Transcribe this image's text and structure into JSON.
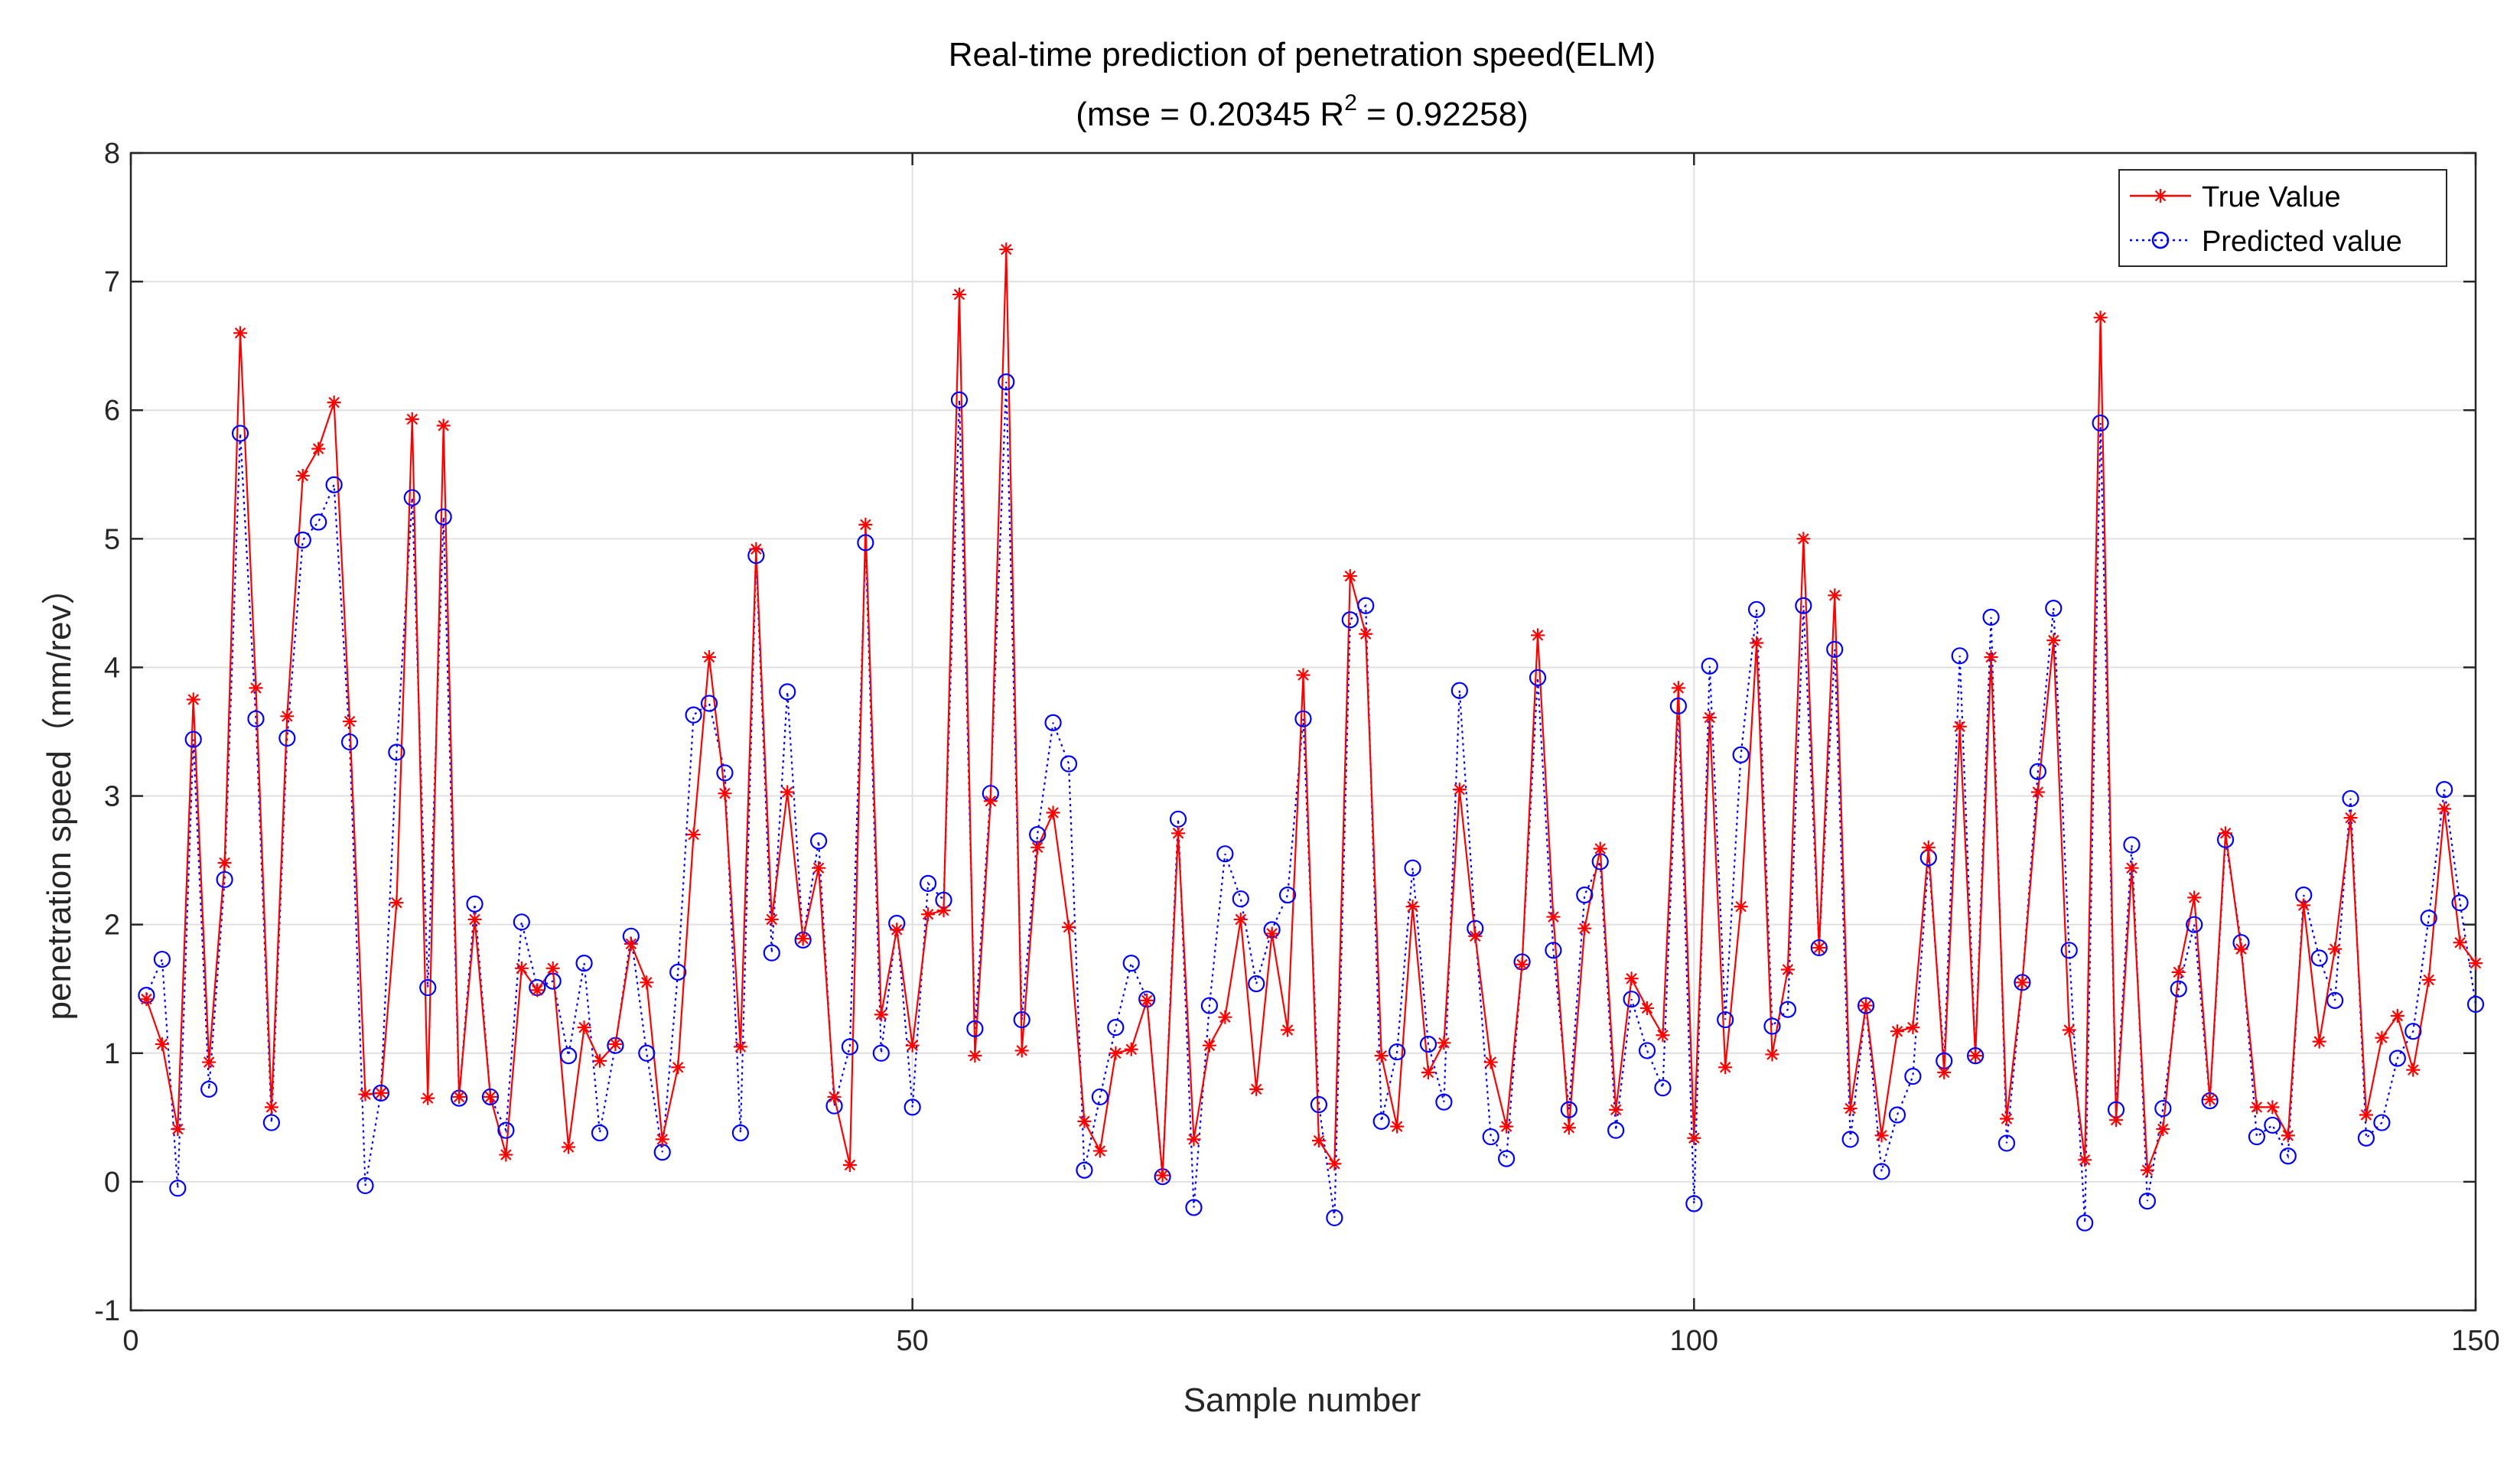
{
  "chart_data": {
    "type": "line",
    "title": "Real-time prediction of penetration speed(ELM)",
    "subtitle": {
      "prefix": "(mse = 0.20345 R",
      "superscript": "2",
      "suffix": " = 0.92258)"
    },
    "xlabel": "Sample number",
    "ylabel": "penetration speed（mm/rev）",
    "xlim": [
      0,
      150
    ],
    "ylim": [
      -1,
      8
    ],
    "xticks": [
      0,
      50,
      100,
      150
    ],
    "yticks": [
      -1,
      0,
      1,
      2,
      3,
      4,
      5,
      6,
      7,
      8
    ],
    "grid": true,
    "legend_position": "top-right",
    "colors": {
      "true": "#ff0000",
      "predicted": "#0000ff",
      "grid": "#e0e0e0",
      "axis": "#262626"
    },
    "x": [
      1,
      2,
      3,
      4,
      5,
      6,
      7,
      8,
      9,
      10,
      11,
      12,
      13,
      14,
      15,
      16,
      17,
      18,
      19,
      20,
      21,
      22,
      23,
      24,
      25,
      26,
      27,
      28,
      29,
      30,
      31,
      32,
      33,
      34,
      35,
      36,
      37,
      38,
      39,
      40,
      41,
      42,
      43,
      44,
      45,
      46,
      47,
      48,
      49,
      50,
      51,
      52,
      53,
      54,
      55,
      56,
      57,
      58,
      59,
      60,
      61,
      62,
      63,
      64,
      65,
      66,
      67,
      68,
      69,
      70,
      71,
      72,
      73,
      74,
      75,
      76,
      77,
      78,
      79,
      80,
      81,
      82,
      83,
      84,
      85,
      86,
      87,
      88,
      89,
      90,
      91,
      92,
      93,
      94,
      95,
      96,
      97,
      98,
      99,
      100,
      101,
      102,
      103,
      104,
      105,
      106,
      107,
      108,
      109,
      110,
      111,
      112,
      113,
      114,
      115,
      116,
      117,
      118,
      119,
      120,
      121,
      122,
      123,
      124,
      125,
      126,
      127,
      128,
      129,
      130,
      131,
      132,
      133,
      134,
      135,
      136,
      137,
      138,
      139,
      140,
      141,
      142,
      143,
      144,
      145,
      146,
      147,
      148,
      149,
      150
    ],
    "series": [
      {
        "name": "True Value",
        "style": "solid",
        "marker": "star",
        "values": [
          1.42,
          1.07,
          0.41,
          3.75,
          0.93,
          2.48,
          6.6,
          3.84,
          0.58,
          3.62,
          5.49,
          5.7,
          6.06,
          3.58,
          0.68,
          0.69,
          2.17,
          5.93,
          0.65,
          5.88,
          0.66,
          2.04,
          0.66,
          0.21,
          1.66,
          1.49,
          1.66,
          0.27,
          1.2,
          0.94,
          1.07,
          1.85,
          1.55,
          0.33,
          0.89,
          2.7,
          4.08,
          3.02,
          1.05,
          4.92,
          2.04,
          3.03,
          1.89,
          2.44,
          0.66,
          0.13,
          5.11,
          1.3,
          1.96,
          1.06,
          2.08,
          2.11,
          6.9,
          0.98,
          2.96,
          7.25,
          1.02,
          2.6,
          2.87,
          1.98,
          0.47,
          0.24,
          1.0,
          1.03,
          1.41,
          0.05,
          2.71,
          0.33,
          1.06,
          1.28,
          2.04,
          0.72,
          1.93,
          1.18,
          3.94,
          0.32,
          0.14,
          4.71,
          4.26,
          0.98,
          0.43,
          2.14,
          0.85,
          1.08,
          3.05,
          1.91,
          0.93,
          0.43,
          1.69,
          4.25,
          2.06,
          0.42,
          1.97,
          2.59,
          0.56,
          1.58,
          1.35,
          1.14,
          3.84,
          0.34,
          3.61,
          0.89,
          2.14,
          4.19,
          0.99,
          1.65,
          5.0,
          1.82,
          4.56,
          0.57,
          1.37,
          0.36,
          1.17,
          1.2,
          2.6,
          0.85,
          3.54,
          0.98,
          4.08,
          0.49,
          1.55,
          3.03,
          4.21,
          1.18,
          0.17,
          6.72,
          0.48,
          2.44,
          0.09,
          0.41,
          1.63,
          2.21,
          0.64,
          2.71,
          1.81,
          0.58,
          0.58,
          0.36,
          2.15,
          1.09,
          1.81,
          2.83,
          0.52,
          1.12,
          1.29,
          0.87,
          1.57,
          2.9,
          1.86,
          1.7
        ]
      },
      {
        "name": "Predicted value",
        "style": "dotted",
        "marker": "circle",
        "values": [
          1.45,
          1.73,
          -0.05,
          3.44,
          0.72,
          2.35,
          5.82,
          3.6,
          0.46,
          3.45,
          4.99,
          5.13,
          5.42,
          3.42,
          -0.03,
          0.69,
          3.34,
          5.32,
          1.51,
          5.17,
          0.65,
          2.16,
          0.66,
          0.4,
          2.02,
          1.51,
          1.56,
          0.98,
          1.7,
          0.38,
          1.06,
          1.91,
          1.0,
          0.23,
          1.63,
          3.63,
          3.72,
          3.18,
          0.38,
          4.87,
          1.78,
          3.81,
          1.88,
          2.65,
          0.59,
          1.05,
          4.97,
          1.0,
          2.01,
          0.58,
          2.32,
          2.19,
          6.08,
          1.19,
          3.02,
          6.22,
          1.26,
          2.7,
          3.57,
          3.25,
          0.09,
          0.66,
          1.2,
          1.7,
          1.42,
          0.04,
          2.82,
          -0.2,
          1.37,
          2.55,
          2.2,
          1.54,
          1.96,
          2.23,
          3.6,
          0.6,
          -0.28,
          4.37,
          4.48,
          0.47,
          1.01,
          2.44,
          1.07,
          0.62,
          3.82,
          1.97,
          0.35,
          0.18,
          1.71,
          3.92,
          1.8,
          0.56,
          2.23,
          2.49,
          0.4,
          1.42,
          1.02,
          0.73,
          3.7,
          -0.17,
          4.01,
          1.26,
          3.32,
          4.45,
          1.21,
          1.34,
          4.48,
          1.82,
          4.14,
          0.33,
          1.37,
          0.08,
          0.52,
          0.82,
          2.52,
          0.94,
          4.09,
          0.98,
          4.39,
          0.3,
          1.55,
          3.19,
          4.46,
          1.8,
          -0.32,
          5.9,
          0.56,
          2.62,
          -0.15,
          0.57,
          1.5,
          2.0,
          0.63,
          2.66,
          1.86,
          0.35,
          0.44,
          0.2,
          2.23,
          1.74,
          1.41,
          2.98,
          0.34,
          0.46,
          0.96,
          1.17,
          2.05,
          3.05,
          2.17,
          1.38
        ]
      }
    ]
  }
}
